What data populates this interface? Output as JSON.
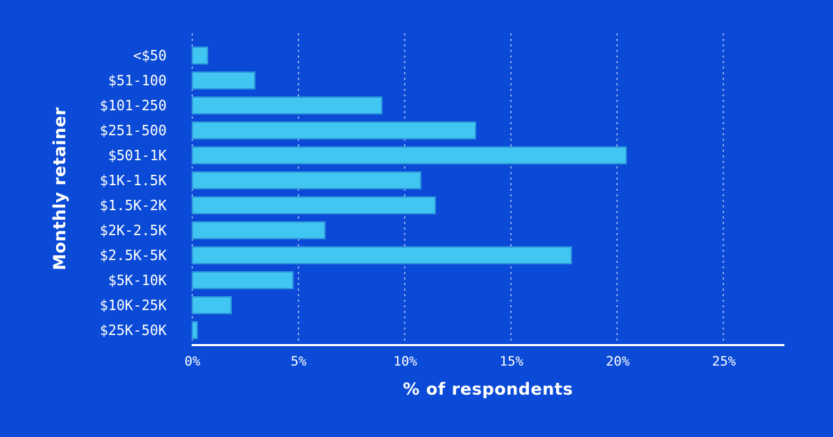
{
  "figure": {
    "background_color": "#0A4AD6",
    "bar_color": "#41C6F2",
    "grid_color": "rgba(255,255,255,0.55)",
    "text_color": "#FFFFFF"
  },
  "chart_data": {
    "type": "bar",
    "orientation": "horizontal",
    "title": "",
    "xlabel": "% of respondents",
    "ylabel": "Monthly retainer",
    "categories": [
      "<$50",
      "$51-100",
      "$101-250",
      "$251-500",
      "$501-1K",
      "$1K-1.5K",
      "$1.5K-2K",
      "$2K-2.5K",
      "$2.5K-5K",
      "$5K-10K",
      "$10K-25K",
      "$25K-50K"
    ],
    "values": [
      0.8,
      3.0,
      9.0,
      13.4,
      20.5,
      10.8,
      11.5,
      6.3,
      17.9,
      4.8,
      1.9,
      0.3
    ],
    "xlim": [
      0,
      27.9
    ],
    "xticks": [
      0,
      5,
      10,
      15,
      20,
      25
    ],
    "xtick_labels": [
      "0%",
      "5%",
      "10%",
      "15%",
      "20%",
      "25%"
    ],
    "grid": "dotted-vertical",
    "legend": null
  }
}
